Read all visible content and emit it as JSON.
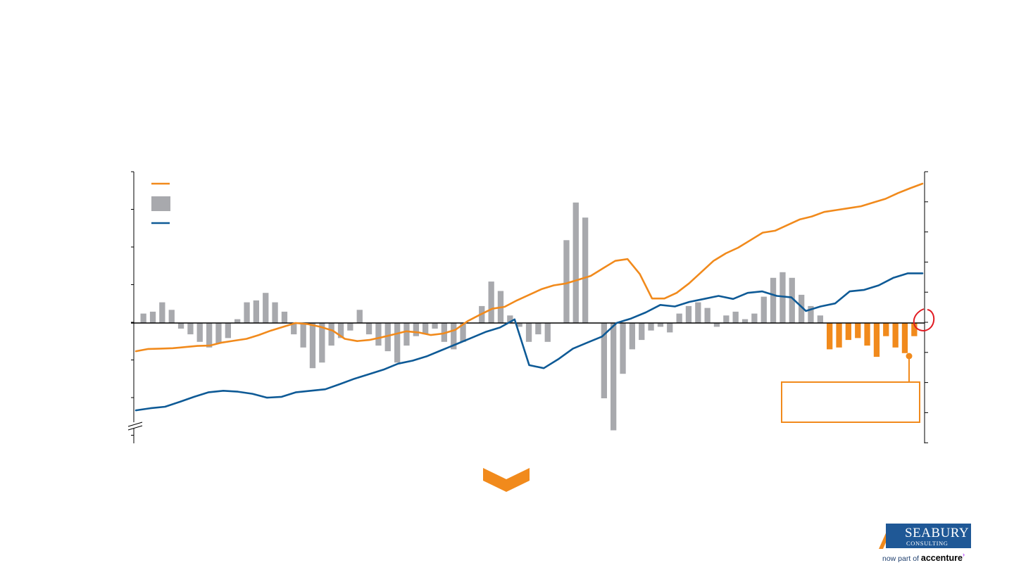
{
  "colors": {
    "orange": "#f18a1c",
    "blue": "#0e5a96",
    "gray": "#a8a9ad",
    "red": "#e11b22",
    "logo_blue": "#1f5896"
  },
  "chart_data": {
    "type": "line",
    "legend_placement": "top-left",
    "grid": false,
    "y_ticks_left_count": 8,
    "y_ticks_right_count": 10,
    "axis_break": "bottom-left",
    "series": [
      {
        "kind": "line",
        "color": "orange",
        "axis": "left",
        "values": [
          -0.75,
          -0.69,
          -0.68,
          -0.67,
          -0.64,
          -0.61,
          -0.6,
          -0.52,
          -0.47,
          -0.42,
          -0.32,
          -0.2,
          -0.1,
          0.0,
          -0.03,
          -0.1,
          -0.2,
          -0.42,
          -0.48,
          -0.45,
          -0.38,
          -0.3,
          -0.22,
          -0.25,
          -0.32,
          -0.28,
          -0.18,
          0.05,
          0.22,
          0.38,
          0.43,
          0.6,
          0.75,
          0.9,
          1.0,
          1.05,
          1.15,
          1.25,
          1.45,
          1.65,
          1.7,
          1.3,
          0.65,
          0.65,
          0.8,
          1.05,
          1.35,
          1.65,
          1.85,
          2.0,
          2.2,
          2.4,
          2.45,
          2.6,
          2.75,
          2.83,
          2.95,
          3.0,
          3.05,
          3.1,
          3.2,
          3.3,
          3.45,
          3.58,
          3.7
        ]
      },
      {
        "kind": "bar",
        "color": "gray",
        "axis": "left",
        "values": [
          0.25,
          0.3,
          0.55,
          0.35,
          -0.15,
          -0.3,
          -0.5,
          -0.65,
          -0.55,
          -0.4,
          0.1,
          0.55,
          0.6,
          0.8,
          0.55,
          0.3,
          -0.3,
          -0.65,
          -1.2,
          -1.05,
          -0.6,
          -0.4,
          -0.2,
          0.35,
          -0.3,
          -0.6,
          -0.75,
          -1.05,
          -0.6,
          -0.35,
          -0.3,
          -0.15,
          -0.5,
          -0.7,
          -0.5,
          0.0,
          0.45,
          1.1,
          0.85,
          0.2,
          -0.1,
          -0.5,
          -0.3,
          -0.5,
          0.0,
          2.2,
          3.2,
          2.8,
          0.0,
          -2.0,
          -2.85,
          -1.35,
          -0.7,
          -0.45,
          -0.2,
          -0.1,
          -0.25,
          0.25,
          0.45,
          0.55,
          0.4,
          -0.1,
          0.2,
          0.3,
          0.1,
          0.25,
          0.7,
          1.2,
          1.35,
          1.2,
          0.75,
          0.45,
          0.2
        ]
      },
      {
        "kind": "bar",
        "color": "orange",
        "axis": "left",
        "values": [
          -0.7,
          -0.65,
          -0.45,
          -0.4,
          -0.6,
          -0.9,
          -0.35,
          -0.65,
          -0.8,
          -0.35
        ]
      },
      {
        "kind": "line",
        "color": "blue",
        "axis": "right",
        "values": [
          -2.9,
          -2.83,
          -2.78,
          -2.62,
          -2.45,
          -2.3,
          -2.25,
          -2.28,
          -2.35,
          -2.48,
          -2.45,
          -2.3,
          -2.25,
          -2.2,
          -2.03,
          -1.85,
          -1.7,
          -1.55,
          -1.35,
          -1.25,
          -1.1,
          -0.9,
          -0.7,
          -0.5,
          -0.3,
          -0.15,
          0.12,
          -1.4,
          -1.5,
          -1.2,
          -0.85,
          -0.65,
          -0.45,
          0.0,
          0.15,
          0.35,
          0.6,
          0.55,
          0.7,
          0.8,
          0.9,
          0.8,
          1.0,
          1.05,
          0.9,
          0.85,
          0.4,
          0.55,
          0.65,
          1.05,
          1.1,
          1.25,
          1.5,
          1.65,
          1.65
        ]
      }
    ]
  },
  "callout": {
    "shape": "rectangle",
    "color": "orange"
  },
  "highlight": {
    "shape": "circle",
    "color": "red"
  },
  "arrow": {
    "shape": "chevron-down",
    "color": "orange"
  },
  "logo": {
    "name": "SEABURY",
    "sub": "CONSULTING",
    "tag_prefix": "now part of",
    "tag_brand": "accenture"
  }
}
